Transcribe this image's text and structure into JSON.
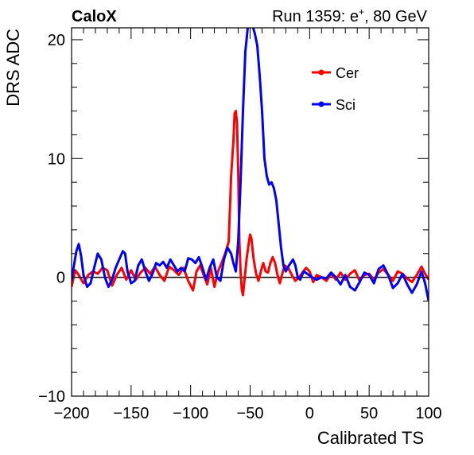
{
  "header": {
    "experiment": "CaloX",
    "run_prefix": "Run 1359: e",
    "run_charge": "+",
    "run_suffix": ", 80 GeV"
  },
  "chart_data": {
    "type": "line",
    "xlabel": "Calibrated TS",
    "ylabel": "DRS ADC",
    "xlim": [
      -200,
      100
    ],
    "ylim": [
      -10,
      21
    ],
    "x_ticks": [
      -200,
      -150,
      -100,
      -50,
      0,
      50,
      100
    ],
    "x_tick_labels": [
      "−200",
      "−150",
      "−100",
      "−50",
      "0",
      "50",
      "100"
    ],
    "y_ticks": [
      -10,
      0,
      10,
      20
    ],
    "y_tick_labels": [
      "−10",
      "0",
      "10",
      "20"
    ],
    "reference_line_y": 0,
    "grid": false,
    "legend_position": "top-right",
    "series": [
      {
        "name": "Cer",
        "color": "#ff0000",
        "points": [
          [
            -200,
            -0.8
          ],
          [
            -197,
            0.6
          ],
          [
            -194,
            0.2
          ],
          [
            -190,
            -0.5
          ],
          [
            -186,
            0.2
          ],
          [
            -182,
            0.5
          ],
          [
            -178,
            0.3
          ],
          [
            -174,
            0.8
          ],
          [
            -170,
            0.6
          ],
          [
            -166,
            -0.7
          ],
          [
            -162,
            0.2
          ],
          [
            -158,
            0.8
          ],
          [
            -154,
            -0.2
          ],
          [
            -150,
            0.6
          ],
          [
            -146,
            -0.2
          ],
          [
            -142,
            0.4
          ],
          [
            -138,
            0.8
          ],
          [
            -134,
            0.3
          ],
          [
            -130,
            0.9
          ],
          [
            -126,
            0.2
          ],
          [
            -122,
            -0.3
          ],
          [
            -118,
            0.9
          ],
          [
            -114,
            0.6
          ],
          [
            -110,
            0.2
          ],
          [
            -106,
            0.8
          ],
          [
            -102,
            -0.3
          ],
          [
            -98,
            -1.1
          ],
          [
            -95,
            0.5
          ],
          [
            -92,
            1.0
          ],
          [
            -89,
            0.2
          ],
          [
            -86,
            -0.6
          ],
          [
            -83,
            0.8
          ],
          [
            -80,
            -0.8
          ],
          [
            -77,
            0.5
          ],
          [
            -74,
            1.2
          ],
          [
            -71,
            2.0
          ],
          [
            -68,
            3.0
          ],
          [
            -66,
            8.5
          ],
          [
            -64,
            11.5
          ],
          [
            -63,
            13.8
          ],
          [
            -62,
            14.0
          ],
          [
            -61,
            13.0
          ],
          [
            -60,
            9.0
          ],
          [
            -59,
            3.0
          ],
          [
            -58,
            0.5
          ],
          [
            -57,
            -1.0
          ],
          [
            -56,
            -1.5
          ],
          [
            -55,
            -0.5
          ],
          [
            -53,
            1.5
          ],
          [
            -51,
            3.0
          ],
          [
            -50,
            3.6
          ],
          [
            -49,
            3.3
          ],
          [
            -47,
            1.5
          ],
          [
            -45,
            0.3
          ],
          [
            -43,
            -0.3
          ],
          [
            -41,
            0.5
          ],
          [
            -39,
            1.2
          ],
          [
            -37,
            0.5
          ],
          [
            -35,
            0.4
          ],
          [
            -33,
            1.2
          ],
          [
            -31,
            1.7
          ],
          [
            -29,
            1.2
          ],
          [
            -27,
            0.2
          ],
          [
            -25,
            -0.5
          ],
          [
            -23,
            0.3
          ],
          [
            -21,
            1.0
          ],
          [
            -18,
            0.8
          ],
          [
            -15,
            0.2
          ],
          [
            -12,
            -0.3
          ],
          [
            -9,
            0.0
          ],
          [
            -6,
            0.4
          ],
          [
            -3,
            0.8
          ],
          [
            0,
            0.5
          ],
          [
            3,
            -0.4
          ],
          [
            6,
            0.2
          ],
          [
            10,
            0.0
          ],
          [
            14,
            -0.3
          ],
          [
            18,
            0.3
          ],
          [
            22,
            -0.2
          ],
          [
            26,
            0.4
          ],
          [
            30,
            -0.2
          ],
          [
            34,
            0.3
          ],
          [
            38,
            0.6
          ],
          [
            42,
            -0.3
          ],
          [
            46,
            0.2
          ],
          [
            50,
            0.3
          ],
          [
            54,
            -0.2
          ],
          [
            58,
            0.4
          ],
          [
            62,
            0.7
          ],
          [
            66,
            0.2
          ],
          [
            70,
            -0.3
          ],
          [
            74,
            0.5
          ],
          [
            78,
            0.3
          ],
          [
            82,
            -0.1
          ],
          [
            86,
            -0.4
          ],
          [
            90,
            0.2
          ],
          [
            94,
            0.9
          ],
          [
            97,
            0.3
          ],
          [
            100,
            -0.2
          ]
        ]
      },
      {
        "name": "Sci",
        "color": "#0000ff",
        "points": [
          [
            -200,
            -0.3
          ],
          [
            -198,
            1.0
          ],
          [
            -196,
            2.2
          ],
          [
            -194,
            2.8
          ],
          [
            -192,
            1.8
          ],
          [
            -190,
            0.2
          ],
          [
            -187,
            -0.8
          ],
          [
            -184,
            -0.5
          ],
          [
            -181,
            0.8
          ],
          [
            -178,
            2.0
          ],
          [
            -175,
            1.5
          ],
          [
            -172,
            0.0
          ],
          [
            -169,
            -0.8
          ],
          [
            -166,
            -0.2
          ],
          [
            -163,
            0.8
          ],
          [
            -160,
            1.5
          ],
          [
            -157,
            2.2
          ],
          [
            -155,
            2.0
          ],
          [
            -153,
            0.5
          ],
          [
            -150,
            -0.5
          ],
          [
            -147,
            -0.3
          ],
          [
            -144,
            1.0
          ],
          [
            -141,
            1.5
          ],
          [
            -138,
            0.5
          ],
          [
            -135,
            -0.3
          ],
          [
            -132,
            0.3
          ],
          [
            -129,
            1.2
          ],
          [
            -126,
            1.0
          ],
          [
            -123,
            1.3
          ],
          [
            -120,
            0.8
          ],
          [
            -117,
            1.5
          ],
          [
            -114,
            1.0
          ],
          [
            -111,
            0.5
          ],
          [
            -108,
            0.8
          ],
          [
            -105,
            0.5
          ],
          [
            -102,
            1.6
          ],
          [
            -99,
            1.5
          ],
          [
            -96,
            1.2
          ],
          [
            -93,
            1.7
          ],
          [
            -90,
            0.8
          ],
          [
            -87,
            -0.2
          ],
          [
            -84,
            0.8
          ],
          [
            -81,
            1.5
          ],
          [
            -78,
            0.0
          ],
          [
            -75,
            -0.3
          ],
          [
            -72,
            1.5
          ],
          [
            -69,
            2.5
          ],
          [
            -66,
            2.0
          ],
          [
            -64,
            1.2
          ],
          [
            -62,
            0.5
          ],
          [
            -60,
            3.0
          ],
          [
            -58,
            8.0
          ],
          [
            -56,
            14.0
          ],
          [
            -54,
            19.0
          ],
          [
            -52,
            21.0
          ],
          [
            -50,
            21.5
          ],
          [
            -48,
            21.2
          ],
          [
            -46,
            20.5
          ],
          [
            -44,
            19.5
          ],
          [
            -42,
            17.0
          ],
          [
            -40,
            14.0
          ],
          [
            -38,
            10.0
          ],
          [
            -36,
            8.5
          ],
          [
            -34,
            7.8
          ],
          [
            -32,
            8.0
          ],
          [
            -30,
            7.5
          ],
          [
            -28,
            6.5
          ],
          [
            -26,
            4.5
          ],
          [
            -24,
            2.5
          ],
          [
            -22,
            1.0
          ],
          [
            -20,
            0.5
          ],
          [
            -18,
            0.9
          ],
          [
            -16,
            1.2
          ],
          [
            -14,
            1.5
          ],
          [
            -12,
            1.0
          ],
          [
            -10,
            0.0
          ],
          [
            -8,
            -0.2
          ],
          [
            -5,
            0.5
          ],
          [
            -2,
            0.3
          ],
          [
            2,
            0.0
          ],
          [
            6,
            -0.2
          ],
          [
            10,
            0.0
          ],
          [
            14,
            -0.1
          ],
          [
            18,
            0.4
          ],
          [
            22,
            0.0
          ],
          [
            26,
            -0.6
          ],
          [
            30,
            0.2
          ],
          [
            34,
            -0.8
          ],
          [
            38,
            -1.1
          ],
          [
            42,
            -0.4
          ],
          [
            46,
            0.4
          ],
          [
            50,
            0.2
          ],
          [
            54,
            -0.5
          ],
          [
            58,
            0.7
          ],
          [
            62,
            1.0
          ],
          [
            66,
            0.2
          ],
          [
            70,
            -0.9
          ],
          [
            74,
            -0.5
          ],
          [
            78,
            0.3
          ],
          [
            82,
            -0.6
          ],
          [
            86,
            -1.3
          ],
          [
            90,
            -0.6
          ],
          [
            94,
            0.5
          ],
          [
            97,
            -0.5
          ],
          [
            100,
            -2.0
          ]
        ]
      }
    ]
  }
}
